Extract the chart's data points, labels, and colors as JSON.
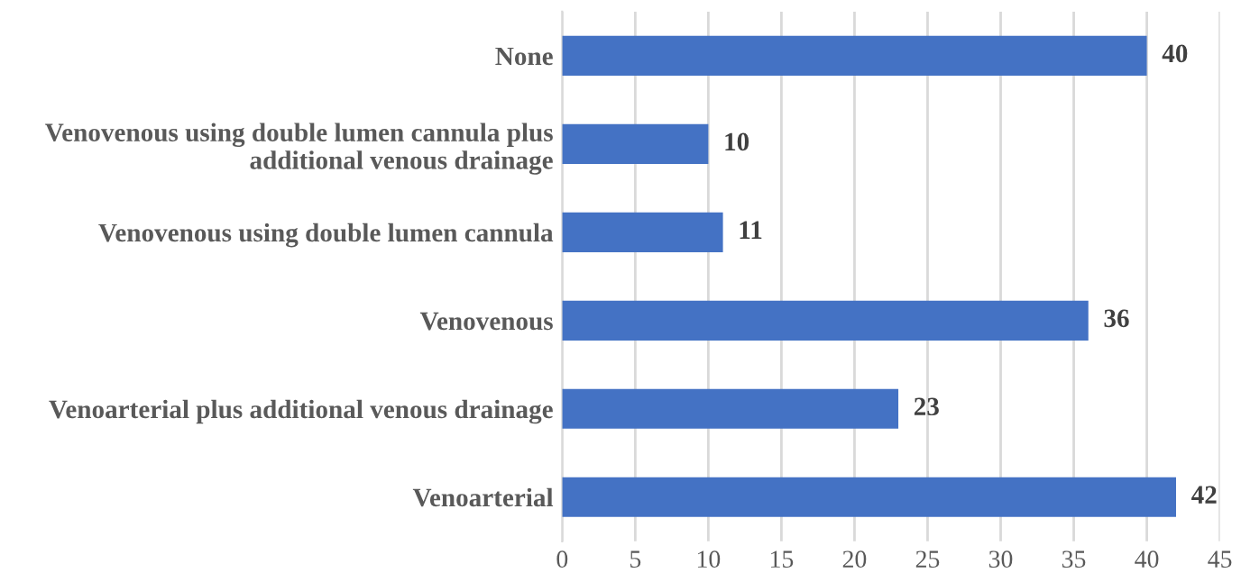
{
  "chart_data": {
    "type": "bar",
    "orientation": "horizontal",
    "categories": [
      "None",
      "Venovenous using double lumen cannula plus\nadditional venous drainage",
      "Venovenous using double lumen cannula",
      "Venovenous",
      "Venoarterial plus additional venous drainage",
      "Venoarterial"
    ],
    "values": [
      40,
      10,
      11,
      36,
      23,
      42
    ],
    "color": "#4472c4",
    "xlim": [
      0,
      45
    ],
    "xticks": [
      0,
      5,
      10,
      15,
      20,
      25,
      30,
      35,
      40,
      45
    ],
    "grid": "x",
    "data_labels": true
  }
}
